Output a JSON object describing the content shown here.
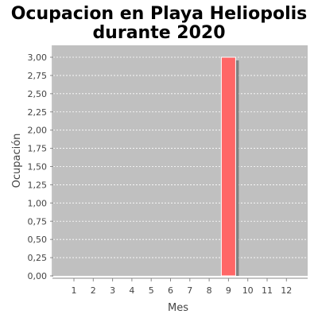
{
  "chart_data": {
    "type": "bar",
    "title_lines": [
      "Ocupacion en  Playa Heliopolis",
      "durante 2020"
    ],
    "xlabel": "Mes",
    "ylabel": "Ocupación",
    "categories": [
      "1",
      "2",
      "3",
      "4",
      "5",
      "6",
      "7",
      "8",
      "9",
      "10",
      "11",
      "12"
    ],
    "values": [
      0,
      0,
      0,
      0,
      0,
      0,
      0,
      0,
      3,
      0,
      0,
      0
    ],
    "ylim": [
      0,
      3.0
    ],
    "yticks": [
      "0,00",
      "0,25",
      "0,50",
      "0,75",
      "1,00",
      "1,25",
      "1,50",
      "1,75",
      "2,00",
      "2,25",
      "2,50",
      "2,75",
      "3,00"
    ],
    "grid": true,
    "legend": "none",
    "colors": {
      "plot_background": "#c0c0c0",
      "grid": "#ffffff",
      "bar": "#ff6666",
      "bar_shadow": "#808080",
      "axis": "#888888"
    }
  }
}
